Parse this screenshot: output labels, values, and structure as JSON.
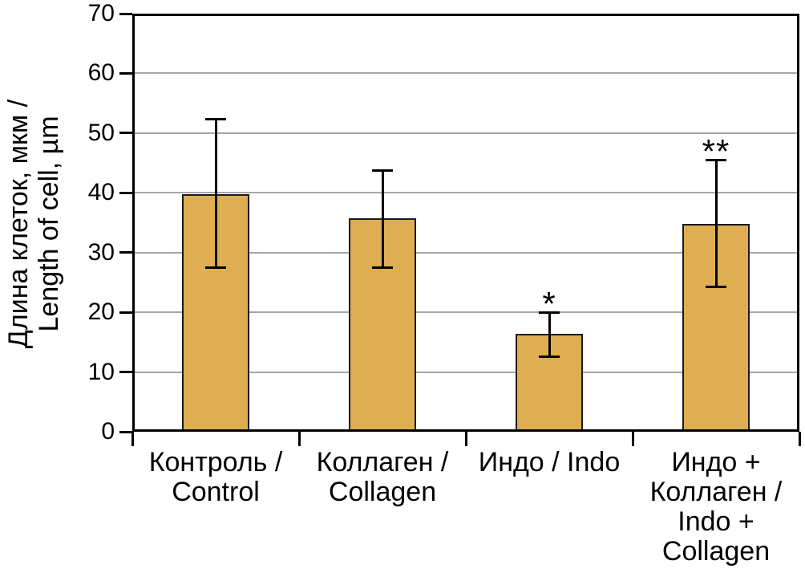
{
  "chart_data": {
    "type": "bar",
    "title": "",
    "xlabel": "",
    "ylabel": "Длина клеток, мкм / Length of cell, µm",
    "ylabel_lines": [
      "Длина клеток, мкм /",
      "Length of cell, µm"
    ],
    "ylim": [
      0,
      70
    ],
    "yticks": [
      0,
      10,
      20,
      30,
      40,
      50,
      60,
      70
    ],
    "grid": true,
    "legend": "none",
    "categories": [
      [
        "Контроль /",
        "Control"
      ],
      [
        "Коллаген /",
        "Collagen"
      ],
      [
        "Индо / Indo"
      ],
      [
        "Индо +",
        "Коллаген /",
        "Indo +",
        "Collagen"
      ]
    ],
    "values": [
      39.8,
      35.7,
      16.4,
      34.8
    ],
    "error_low": [
      27.5,
      27.5,
      12.5,
      24.2
    ],
    "error_high": [
      52.3,
      43.8,
      20.0,
      45.5
    ],
    "significance": [
      "",
      "",
      "*",
      "**"
    ],
    "colors": {
      "bar_fill": "#dfae52",
      "bar_border": "#1a1a1a",
      "grid": "#a6a6a6",
      "axis": "#000000",
      "background": "#ffffff",
      "text": "#000000"
    }
  }
}
